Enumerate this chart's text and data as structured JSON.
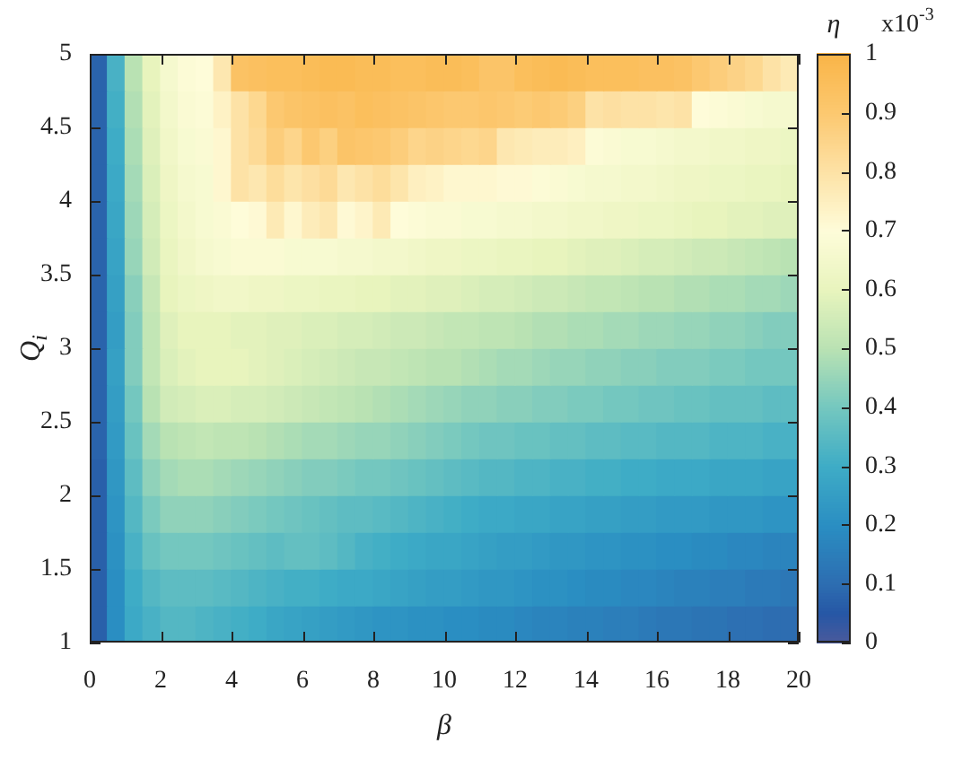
{
  "chart_data": {
    "type": "heatmap",
    "xlabel": "β",
    "ylabel": "Q$_{i}$",
    "clabel": "η",
    "annotations": [
      "x10$^{-3}$"
    ],
    "x": [
      0.25,
      0.75,
      1.25,
      1.75,
      2.25,
      2.75,
      3.25,
      3.75,
      4.25,
      4.75,
      5.25,
      5.75,
      6.25,
      6.75,
      7.25,
      7.75,
      8.25,
      8.75,
      9.25,
      9.75,
      10.25,
      10.75,
      11.25,
      11.75,
      12.25,
      12.75,
      13.25,
      13.75,
      14.25,
      14.75,
      15.25,
      15.75,
      16.25,
      16.75,
      17.25,
      17.75,
      18.25,
      18.75,
      19.25,
      19.75
    ],
    "y": [
      4.875,
      4.625,
      4.375,
      4.125,
      3.875,
      3.625,
      3.375,
      3.125,
      2.875,
      2.625,
      2.375,
      2.125,
      1.875,
      1.625,
      1.375,
      1.125
    ],
    "cells": [
      [
        0.08,
        0.32,
        0.5,
        0.6,
        0.66,
        0.69,
        0.7,
        0.78,
        0.93,
        0.94,
        0.95,
        0.95,
        0.96,
        0.97,
        0.97,
        0.96,
        0.96,
        0.95,
        0.95,
        0.96,
        0.96,
        0.95,
        0.92,
        0.92,
        0.95,
        0.96,
        0.97,
        0.96,
        0.95,
        0.95,
        0.95,
        0.94,
        0.94,
        0.93,
        0.9,
        0.88,
        0.86,
        0.84,
        0.8,
        0.77
      ],
      [
        0.08,
        0.31,
        0.49,
        0.59,
        0.65,
        0.68,
        0.69,
        0.74,
        0.8,
        0.84,
        0.9,
        0.92,
        0.93,
        0.94,
        0.93,
        0.95,
        0.94,
        0.93,
        0.92,
        0.91,
        0.9,
        0.9,
        0.91,
        0.9,
        0.89,
        0.9,
        0.89,
        0.87,
        0.8,
        0.81,
        0.8,
        0.8,
        0.79,
        0.8,
        0.7,
        0.69,
        0.68,
        0.67,
        0.66,
        0.66
      ],
      [
        0.08,
        0.3,
        0.48,
        0.58,
        0.64,
        0.67,
        0.68,
        0.72,
        0.8,
        0.83,
        0.88,
        0.85,
        0.9,
        0.87,
        0.92,
        0.91,
        0.9,
        0.88,
        0.85,
        0.86,
        0.85,
        0.84,
        0.85,
        0.78,
        0.77,
        0.76,
        0.76,
        0.75,
        0.69,
        0.68,
        0.67,
        0.67,
        0.66,
        0.65,
        0.65,
        0.64,
        0.64,
        0.63,
        0.63,
        0.62
      ],
      [
        0.08,
        0.29,
        0.47,
        0.57,
        0.63,
        0.66,
        0.67,
        0.72,
        0.8,
        0.78,
        0.82,
        0.79,
        0.81,
        0.83,
        0.78,
        0.8,
        0.82,
        0.79,
        0.75,
        0.74,
        0.72,
        0.72,
        0.72,
        0.71,
        0.71,
        0.69,
        0.68,
        0.67,
        0.66,
        0.66,
        0.65,
        0.65,
        0.64,
        0.63,
        0.63,
        0.62,
        0.62,
        0.61,
        0.61,
        0.6
      ],
      [
        0.08,
        0.28,
        0.46,
        0.56,
        0.62,
        0.65,
        0.67,
        0.68,
        0.7,
        0.71,
        0.77,
        0.72,
        0.76,
        0.78,
        0.71,
        0.73,
        0.77,
        0.7,
        0.69,
        0.68,
        0.68,
        0.67,
        0.67,
        0.66,
        0.66,
        0.65,
        0.65,
        0.64,
        0.64,
        0.63,
        0.63,
        0.62,
        0.62,
        0.61,
        0.6,
        0.6,
        0.59,
        0.59,
        0.58,
        0.58
      ],
      [
        0.08,
        0.27,
        0.45,
        0.55,
        0.61,
        0.64,
        0.66,
        0.67,
        0.68,
        0.68,
        0.68,
        0.67,
        0.67,
        0.67,
        0.66,
        0.66,
        0.65,
        0.65,
        0.64,
        0.63,
        0.63,
        0.62,
        0.62,
        0.61,
        0.61,
        0.6,
        0.6,
        0.59,
        0.58,
        0.58,
        0.57,
        0.56,
        0.56,
        0.55,
        0.54,
        0.54,
        0.53,
        0.52,
        0.51,
        0.5
      ],
      [
        0.08,
        0.26,
        0.43,
        0.53,
        0.6,
        0.62,
        0.63,
        0.64,
        0.64,
        0.63,
        0.63,
        0.62,
        0.62,
        0.61,
        0.61,
        0.6,
        0.6,
        0.59,
        0.59,
        0.58,
        0.58,
        0.57,
        0.56,
        0.56,
        0.55,
        0.54,
        0.54,
        0.53,
        0.52,
        0.52,
        0.51,
        0.5,
        0.5,
        0.49,
        0.49,
        0.48,
        0.48,
        0.47,
        0.47,
        0.46
      ],
      [
        0.08,
        0.25,
        0.42,
        0.52,
        0.58,
        0.6,
        0.6,
        0.6,
        0.59,
        0.59,
        0.58,
        0.58,
        0.57,
        0.57,
        0.56,
        0.56,
        0.55,
        0.54,
        0.54,
        0.53,
        0.52,
        0.52,
        0.51,
        0.51,
        0.5,
        0.49,
        0.49,
        0.48,
        0.48,
        0.47,
        0.47,
        0.46,
        0.46,
        0.45,
        0.45,
        0.44,
        0.44,
        0.43,
        0.42,
        0.42
      ],
      [
        0.08,
        0.26,
        0.42,
        0.52,
        0.57,
        0.59,
        0.6,
        0.6,
        0.6,
        0.59,
        0.58,
        0.57,
        0.56,
        0.55,
        0.54,
        0.53,
        0.53,
        0.52,
        0.51,
        0.5,
        0.5,
        0.49,
        0.48,
        0.47,
        0.47,
        0.46,
        0.45,
        0.45,
        0.44,
        0.44,
        0.43,
        0.43,
        0.42,
        0.42,
        0.42,
        0.41,
        0.41,
        0.4,
        0.4,
        0.4
      ],
      [
        0.08,
        0.25,
        0.4,
        0.5,
        0.55,
        0.56,
        0.57,
        0.57,
        0.56,
        0.56,
        0.55,
        0.54,
        0.53,
        0.52,
        0.51,
        0.5,
        0.49,
        0.48,
        0.47,
        0.46,
        0.45,
        0.44,
        0.44,
        0.43,
        0.43,
        0.42,
        0.42,
        0.41,
        0.41,
        0.4,
        0.4,
        0.39,
        0.39,
        0.38,
        0.38,
        0.37,
        0.37,
        0.37,
        0.36,
        0.36
      ],
      [
        0.08,
        0.24,
        0.38,
        0.47,
        0.5,
        0.51,
        0.52,
        0.51,
        0.51,
        0.5,
        0.49,
        0.48,
        0.47,
        0.47,
        0.46,
        0.45,
        0.45,
        0.44,
        0.43,
        0.42,
        0.41,
        0.4,
        0.39,
        0.39,
        0.38,
        0.38,
        0.37,
        0.37,
        0.36,
        0.36,
        0.35,
        0.35,
        0.34,
        0.34,
        0.34,
        0.33,
        0.33,
        0.33,
        0.32,
        0.32
      ],
      [
        0.07,
        0.23,
        0.36,
        0.44,
        0.47,
        0.48,
        0.48,
        0.47,
        0.46,
        0.45,
        0.44,
        0.43,
        0.42,
        0.42,
        0.41,
        0.4,
        0.4,
        0.39,
        0.38,
        0.37,
        0.36,
        0.35,
        0.34,
        0.34,
        0.33,
        0.33,
        0.32,
        0.32,
        0.31,
        0.31,
        0.3,
        0.3,
        0.29,
        0.29,
        0.29,
        0.28,
        0.28,
        0.28,
        0.27,
        0.27
      ],
      [
        0.07,
        0.22,
        0.34,
        0.41,
        0.44,
        0.44,
        0.44,
        0.43,
        0.42,
        0.41,
        0.4,
        0.39,
        0.38,
        0.37,
        0.36,
        0.36,
        0.35,
        0.34,
        0.33,
        0.32,
        0.31,
        0.3,
        0.29,
        0.29,
        0.28,
        0.28,
        0.27,
        0.27,
        0.26,
        0.26,
        0.25,
        0.25,
        0.24,
        0.24,
        0.24,
        0.23,
        0.23,
        0.23,
        0.22,
        0.22
      ],
      [
        0.07,
        0.21,
        0.32,
        0.38,
        0.4,
        0.4,
        0.4,
        0.39,
        0.38,
        0.37,
        0.36,
        0.37,
        0.37,
        0.36,
        0.34,
        0.32,
        0.31,
        0.3,
        0.29,
        0.28,
        0.28,
        0.27,
        0.26,
        0.25,
        0.25,
        0.24,
        0.23,
        0.23,
        0.22,
        0.22,
        0.21,
        0.21,
        0.2,
        0.2,
        0.19,
        0.19,
        0.18,
        0.18,
        0.17,
        0.17
      ],
      [
        0.07,
        0.2,
        0.3,
        0.34,
        0.36,
        0.36,
        0.36,
        0.35,
        0.34,
        0.33,
        0.32,
        0.31,
        0.31,
        0.3,
        0.29,
        0.29,
        0.28,
        0.27,
        0.26,
        0.25,
        0.25,
        0.24,
        0.23,
        0.23,
        0.22,
        0.21,
        0.21,
        0.2,
        0.19,
        0.19,
        0.18,
        0.18,
        0.17,
        0.16,
        0.16,
        0.15,
        0.15,
        0.14,
        0.14,
        0.13
      ],
      [
        0.07,
        0.2,
        0.29,
        0.32,
        0.34,
        0.34,
        0.33,
        0.32,
        0.31,
        0.3,
        0.28,
        0.27,
        0.26,
        0.25,
        0.24,
        0.23,
        0.22,
        0.22,
        0.21,
        0.21,
        0.2,
        0.2,
        0.19,
        0.19,
        0.18,
        0.17,
        0.17,
        0.16,
        0.16,
        0.15,
        0.15,
        0.14,
        0.13,
        0.13,
        0.12,
        0.12,
        0.11,
        0.11,
        0.1,
        0.1
      ]
    ],
    "clim": [
      0,
      1
    ],
    "cticks": [
      0,
      0.1,
      0.2,
      0.3,
      0.4,
      0.5,
      0.6,
      0.7,
      0.8,
      0.9,
      1
    ],
    "xlim": [
      0,
      20
    ],
    "xticks": [
      0,
      2,
      4,
      6,
      8,
      10,
      12,
      14,
      16,
      18,
      20
    ],
    "ylim": [
      1,
      5
    ],
    "yticks": [
      1,
      1.5,
      2,
      2.5,
      3,
      3.5,
      4,
      4.5,
      5
    ]
  }
}
